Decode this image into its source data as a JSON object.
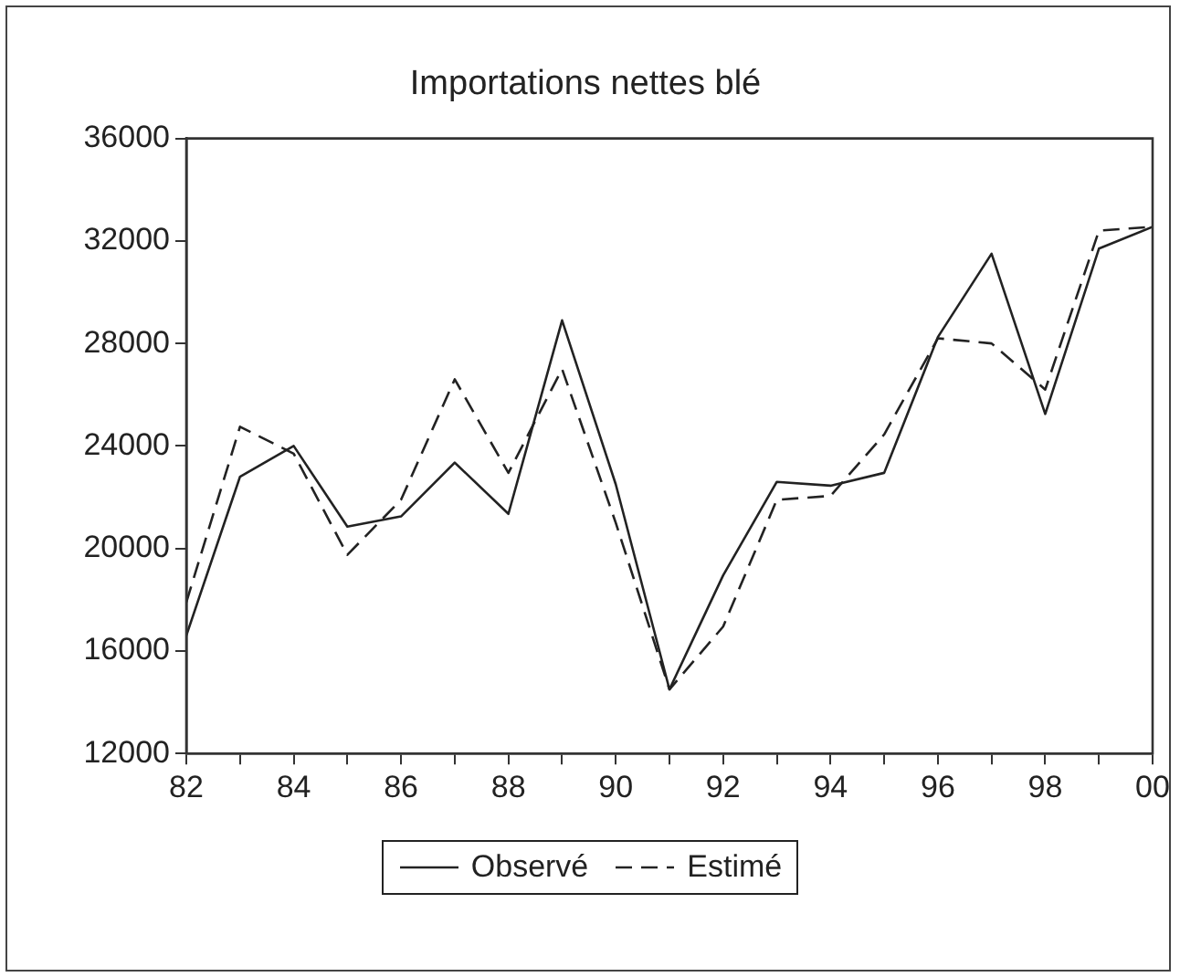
{
  "chart_data": {
    "type": "line",
    "title": "Importations nettes blé",
    "x": [
      1982,
      1983,
      1984,
      1985,
      1986,
      1987,
      1988,
      1989,
      1990,
      1991,
      1992,
      1993,
      1994,
      1995,
      1996,
      1997,
      1998,
      1999,
      2000
    ],
    "series": [
      {
        "name": "Observé",
        "color": "#222222",
        "line_style": "solid",
        "values": [
          16600,
          22800,
          24000,
          20850,
          21250,
          23350,
          21350,
          28900,
          22500,
          14500,
          18950,
          22600,
          22450,
          22950,
          28250,
          31500,
          25250,
          31700,
          32550
        ]
      },
      {
        "name": "Estimé",
        "color": "#222222",
        "line_style": "dashed",
        "values": [
          17900,
          24750,
          23700,
          19750,
          21900,
          26600,
          22950,
          27000,
          21000,
          14500,
          16950,
          21900,
          22050,
          24450,
          28200,
          28000,
          26200,
          32400,
          32550
        ]
      }
    ],
    "xlim": [
      1982,
      2000
    ],
    "xticks": [
      {
        "value": 1982,
        "label": "82"
      },
      {
        "value": 1983,
        "label": null
      },
      {
        "value": 1984,
        "label": "84"
      },
      {
        "value": 1985,
        "label": null
      },
      {
        "value": 1986,
        "label": "86"
      },
      {
        "value": 1987,
        "label": null
      },
      {
        "value": 1988,
        "label": "88"
      },
      {
        "value": 1989,
        "label": null
      },
      {
        "value": 1990,
        "label": "90"
      },
      {
        "value": 1991,
        "label": null
      },
      {
        "value": 1992,
        "label": "92"
      },
      {
        "value": 1993,
        "label": null
      },
      {
        "value": 1994,
        "label": "94"
      },
      {
        "value": 1995,
        "label": null
      },
      {
        "value": 1996,
        "label": "96"
      },
      {
        "value": 1997,
        "label": null
      },
      {
        "value": 1998,
        "label": "98"
      },
      {
        "value": 1999,
        "label": null
      },
      {
        "value": 2000,
        "label": "00"
      }
    ],
    "ylim": [
      12000,
      36000
    ],
    "yticks": [
      12000,
      16000,
      20000,
      24000,
      28000,
      32000,
      36000
    ],
    "legend": "bottom",
    "marker": "none"
  }
}
